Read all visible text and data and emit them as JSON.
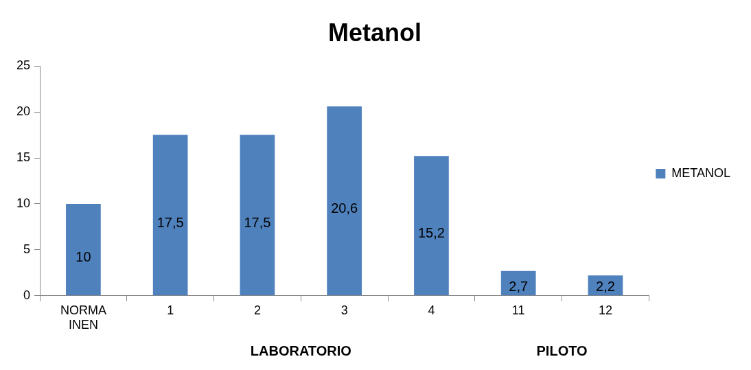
{
  "chart_data": {
    "type": "bar",
    "title": "Metanol",
    "categories": [
      "NORMA INEN",
      "1",
      "2",
      "3",
      "4",
      "11",
      "12"
    ],
    "series": [
      {
        "name": "METANOL",
        "color": "#4f81bd",
        "values": [
          10,
          17.5,
          17.5,
          20.6,
          15.2,
          2.7,
          2.2
        ],
        "value_labels": [
          "10",
          "17,5",
          "17,5",
          "20,6",
          "15,2",
          "2,7",
          "2,2"
        ]
      }
    ],
    "ylim": [
      0,
      25
    ],
    "yticks": [
      0,
      5,
      10,
      15,
      20,
      25
    ],
    "grid": false,
    "legend": "right",
    "annotations": [
      "LABORATORIO",
      "PILOTO"
    ]
  }
}
